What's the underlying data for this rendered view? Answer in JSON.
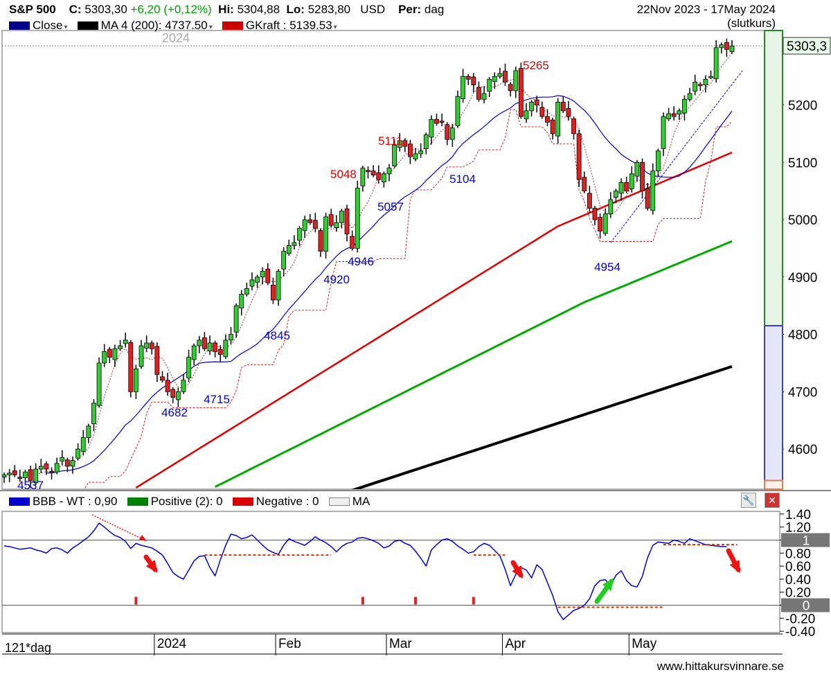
{
  "header": {
    "symbol": "S&P 500",
    "close_label": "C:",
    "close_value": "5303,30",
    "change": "+6,20 (+0,12%)",
    "hi_label": "Hi:",
    "hi_value": "5304,88",
    "lo_label": "Lo:",
    "lo_value": "5283,80",
    "currency": "USD",
    "period_label": "Per:",
    "period_value": "dag",
    "date_range": "22Nov 2023 - 17May 2024",
    "price_type": "(slutkurs)"
  },
  "legend_main": [
    {
      "label": "Close",
      "color": "#00008b",
      "dropdown": true
    },
    {
      "label": "MA 4 (200): 4737.50",
      "color": "#000000",
      "dropdown": true
    },
    {
      "label": "GKraft : 5139.53",
      "color": "#cc0000",
      "dropdown": true
    }
  ],
  "legend_indicator": [
    {
      "label": "BBB - WT : 0,90",
      "color": "#0000cc"
    },
    {
      "label": "Positive (2): 0",
      "color": "#008000"
    },
    {
      "label": "Negative : 0",
      "color": "#dd0000"
    },
    {
      "label": "MA",
      "color": "#f0f0f0"
    }
  ],
  "year_ghost_label": "2024",
  "footer": {
    "timeframe": "121*dag",
    "website": "www.hittakursvinnare.se"
  },
  "tool_icons": [
    "wrench-icon",
    "close-icon"
  ],
  "colors": {
    "up_candle": "#33cc33",
    "down_candle": "#dd2222",
    "ma_blue": "#0000cc",
    "ma_red": "#dd0000",
    "ma_green": "#00aa00",
    "ma_black": "#000000",
    "annotation_red": "#dd0000",
    "annotation_blue": "#0000cc"
  },
  "chart_data": [
    {
      "type": "candlestick",
      "xlabel": "",
      "ylabel": "",
      "ylim": [
        4530,
        5330
      ],
      "yticks": [
        4600,
        4700,
        4800,
        4900,
        5000,
        5100,
        5200
      ],
      "last_price_label": "5303,3",
      "x_axis_labels": [
        {
          "label": "2024",
          "index": 29
        },
        {
          "label": "Feb",
          "index": 52
        },
        {
          "label": "Mar",
          "index": 73
        },
        {
          "label": "Apr",
          "index": 95
        },
        {
          "label": "May",
          "index": 119
        }
      ],
      "ohlc_closes": [
        4555,
        4558,
        4555,
        4550,
        4560,
        4545,
        4565,
        4570,
        4565,
        4560,
        4575,
        4585,
        4570,
        4580,
        4600,
        4620,
        4640,
        4680,
        4750,
        4770,
        4760,
        4775,
        4780,
        4790,
        4700,
        4740,
        4780,
        4785,
        4775,
        4730,
        4720,
        4700,
        4690,
        4700,
        4720,
        4760,
        4780,
        4790,
        4775,
        4785,
        4770,
        4765,
        4790,
        4800,
        4850,
        4870,
        4880,
        4895,
        4900,
        4910,
        4890,
        4860,
        4910,
        4945,
        4955,
        4960,
        4985,
        5000,
        4995,
        4985,
        4945,
        5005,
        4990,
        4995,
        5015,
        4975,
        4950,
        5055,
        5090,
        5085,
        5078,
        5070,
        5080,
        5090,
        5130,
        5138,
        5128,
        5110,
        5115,
        5120,
        5148,
        5175,
        5168,
        5170,
        5140,
        5160,
        5215,
        5250,
        5245,
        5235,
        5210,
        5220,
        5245,
        5250,
        5255,
        5240,
        5225,
        5260,
        5180,
        5190,
        5205,
        5200,
        5180,
        5170,
        5150,
        5205,
        5190,
        5180,
        5150,
        5070,
        5050,
        5020,
        5000,
        4980,
        5010,
        5035,
        5050,
        5065,
        5050,
        5080,
        5100,
        5050,
        5020,
        5085,
        5120,
        5180,
        5185,
        5180,
        5190,
        5210,
        5220,
        5240,
        5235,
        5245,
        5250,
        5300,
        5305,
        5297,
        5303
      ],
      "annotations_red": [
        "5048",
        "5111",
        "5265"
      ],
      "annotations_blue": [
        "4537",
        "4682",
        "4715",
        "4845",
        "4920",
        "4946",
        "5057",
        "5104",
        "4954"
      ],
      "series": [
        {
          "name": "MA 4 (200)",
          "values_start": 4700,
          "values_end": 4737.5
        },
        {
          "name": "GKraft",
          "last_value": 5139.53
        }
      ],
      "side_bar": {
        "green_from": 4815,
        "green_to": 5330,
        "blue_from": 4545,
        "blue_to": 4815
      }
    },
    {
      "type": "line",
      "xlabel": "",
      "ylabel": "",
      "ylim": [
        -0.42,
        1.42
      ],
      "yticks": [
        1.4,
        1.2,
        1,
        0.8,
        0.6,
        0.4,
        0.2,
        0,
        -0.2,
        -0.4
      ],
      "reference_lines": [
        1,
        0
      ],
      "series": [
        {
          "name": "BBB - WT",
          "last_value": 0.9,
          "values": [
            0.91,
            0.9,
            0.88,
            0.86,
            0.87,
            0.88,
            0.85,
            0.83,
            0.8,
            0.87,
            0.88,
            0.85,
            0.8,
            0.88,
            0.93,
            0.99,
            1.05,
            1.14,
            1.26,
            1.2,
            1.13,
            1.07,
            1.04,
            0.98,
            0.87,
            0.95,
            0.92,
            0.9,
            0.88,
            0.83,
            0.77,
            0.64,
            0.5,
            0.44,
            0.4,
            0.54,
            0.68,
            0.75,
            0.76,
            0.58,
            0.45,
            0.7,
            0.92,
            1.09,
            1.07,
            1.02,
            1.04,
            1.08,
            1.0,
            0.92,
            0.85,
            0.81,
            0.78,
            0.92,
            1.02,
            0.98,
            0.95,
            0.92,
            0.98,
            1.05,
            1.0,
            0.96,
            0.9,
            0.82,
            0.9,
            0.95,
            0.97,
            1.03,
            1.04,
            1.02,
            0.99,
            0.95,
            0.88,
            0.91,
            0.98,
            1.0,
            0.95,
            0.92,
            0.83,
            0.72,
            0.6,
            0.85,
            0.93,
            1.0,
            1.02,
            0.98,
            0.91,
            0.86,
            0.8,
            0.82,
            0.9,
            0.95,
            0.92,
            0.84,
            0.76,
            0.55,
            0.3,
            0.47,
            0.58,
            0.54,
            0.42,
            0.62,
            0.55,
            0.35,
            0.15,
            -0.1,
            -0.22,
            -0.15,
            -0.08,
            -0.05,
            0.0,
            0.1,
            0.3,
            0.38,
            0.39,
            0.3,
            0.46,
            0.53,
            0.38,
            0.3,
            0.28,
            0.44,
            0.73,
            0.92,
            0.97,
            0.96,
            0.95,
            1.0,
            0.98,
            0.95,
            1.02,
            0.99,
            0.96,
            0.93,
            0.92,
            0.91,
            0.9,
            0.9
          ]
        },
        {
          "name": "Negative",
          "signal_indices": [
            25,
            68,
            78,
            89
          ]
        }
      ]
    }
  ]
}
